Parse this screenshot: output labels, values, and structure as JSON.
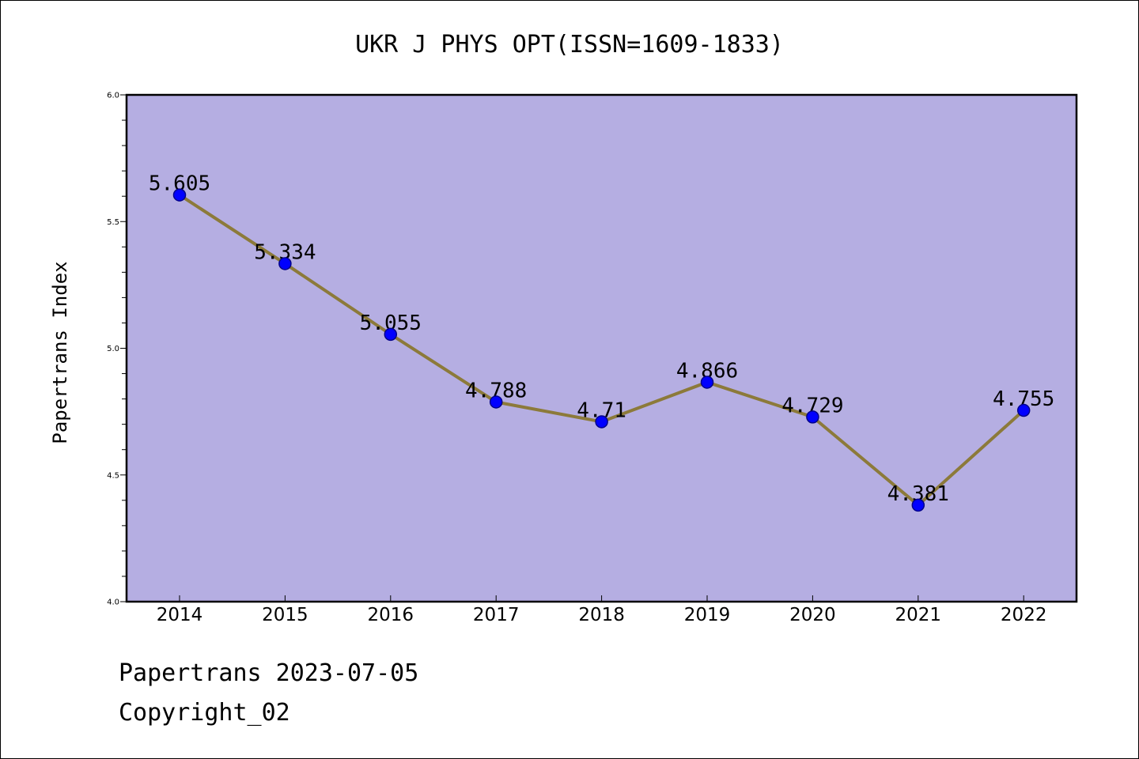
{
  "chart_data": {
    "type": "line",
    "title": "UKR J PHYS OPT(ISSN=1609-1833)",
    "xlabel": "",
    "ylabel": "Papertrans Index",
    "categories": [
      "2014",
      "2015",
      "2016",
      "2017",
      "2018",
      "2019",
      "2020",
      "2021",
      "2022"
    ],
    "series": [
      {
        "values": [
          5.605,
          5.334,
          5.055,
          4.788,
          4.71,
          4.866,
          4.729,
          4.381,
          4.755
        ],
        "labels": [
          "5.605",
          "5.334",
          "5.055",
          "4.788",
          "4.71",
          "4.866",
          "4.729",
          "4.381",
          "4.755"
        ]
      }
    ],
    "ylim": [
      4.0,
      6.0
    ],
    "yticks": [
      "4.0",
      "4.5",
      "5.0",
      "5.5",
      "6.0"
    ],
    "grid": false,
    "colors": {
      "plot_background": "#b5aee2",
      "line": "#8c7a3a",
      "marker": "#0000ff",
      "marker_edge": "#00008b"
    }
  },
  "footer": {
    "line1": "Papertrans 2023-07-05",
    "line2": "Copyright_02"
  }
}
